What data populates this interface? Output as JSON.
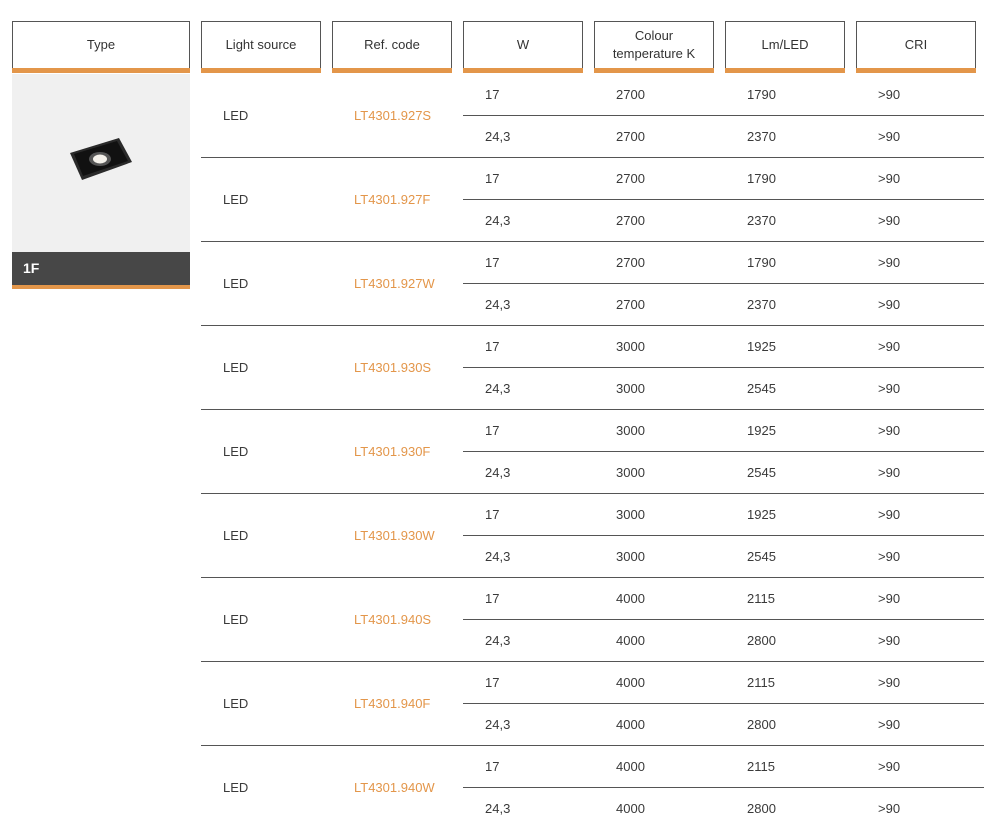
{
  "headers": {
    "type": "Type",
    "light_source": "Light source",
    "ref_code": "Ref. code",
    "w": "W",
    "colour_temp": "Colour temperature K",
    "lm_led": "Lm/LED",
    "cri": "CRI"
  },
  "product": {
    "type_label": "1F",
    "image": "recessed-square-downlight-black"
  },
  "colors": {
    "accent": "#e3964a",
    "dark": "#474747",
    "panel": "#f0f0f0"
  },
  "groups": [
    {
      "source": "LED",
      "ref": "LT4301.927S",
      "rows": [
        {
          "w": "17",
          "k": "2700",
          "lm": "1790",
          "cri": ">90"
        },
        {
          "w": "24,3",
          "k": "2700",
          "lm": "2370",
          "cri": ">90"
        }
      ]
    },
    {
      "source": "LED",
      "ref": "LT4301.927F",
      "rows": [
        {
          "w": "17",
          "k": "2700",
          "lm": "1790",
          "cri": ">90"
        },
        {
          "w": "24,3",
          "k": "2700",
          "lm": "2370",
          "cri": ">90"
        }
      ]
    },
    {
      "source": "LED",
      "ref": "LT4301.927W",
      "rows": [
        {
          "w": "17",
          "k": "2700",
          "lm": "1790",
          "cri": ">90"
        },
        {
          "w": "24,3",
          "k": "2700",
          "lm": "2370",
          "cri": ">90"
        }
      ]
    },
    {
      "source": "LED",
      "ref": "LT4301.930S",
      "rows": [
        {
          "w": "17",
          "k": "3000",
          "lm": "1925",
          "cri": ">90"
        },
        {
          "w": "24,3",
          "k": "3000",
          "lm": "2545",
          "cri": ">90"
        }
      ]
    },
    {
      "source": "LED",
      "ref": "LT4301.930F",
      "rows": [
        {
          "w": "17",
          "k": "3000",
          "lm": "1925",
          "cri": ">90"
        },
        {
          "w": "24,3",
          "k": "3000",
          "lm": "2545",
          "cri": ">90"
        }
      ]
    },
    {
      "source": "LED",
      "ref": "LT4301.930W",
      "rows": [
        {
          "w": "17",
          "k": "3000",
          "lm": "1925",
          "cri": ">90"
        },
        {
          "w": "24,3",
          "k": "3000",
          "lm": "2545",
          "cri": ">90"
        }
      ]
    },
    {
      "source": "LED",
      "ref": "LT4301.940S",
      "rows": [
        {
          "w": "17",
          "k": "4000",
          "lm": "2115",
          "cri": ">90"
        },
        {
          "w": "24,3",
          "k": "4000",
          "lm": "2800",
          "cri": ">90"
        }
      ]
    },
    {
      "source": "LED",
      "ref": "LT4301.940F",
      "rows": [
        {
          "w": "17",
          "k": "4000",
          "lm": "2115",
          "cri": ">90"
        },
        {
          "w": "24,3",
          "k": "4000",
          "lm": "2800",
          "cri": ">90"
        }
      ]
    },
    {
      "source": "LED",
      "ref": "LT4301.940W",
      "rows": [
        {
          "w": "17",
          "k": "4000",
          "lm": "2115",
          "cri": ">90"
        },
        {
          "w": "24,3",
          "k": "4000",
          "lm": "2800",
          "cri": ">90"
        }
      ]
    }
  ]
}
